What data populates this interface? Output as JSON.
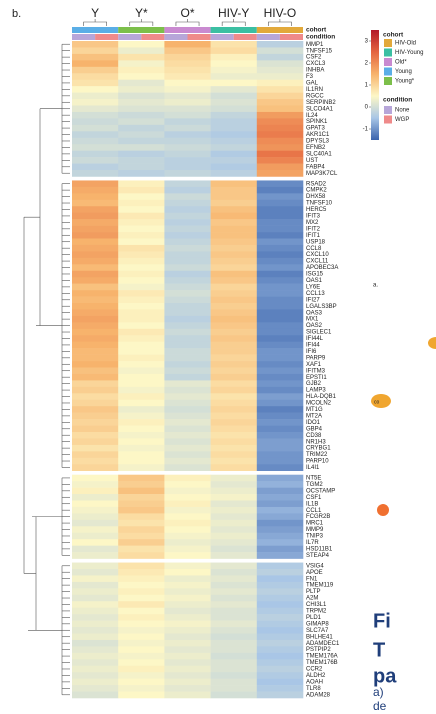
{
  "panel_label": "b.",
  "side_panel": {
    "label": "a.",
    "node_text": "co",
    "caption": [
      "Fi",
      "T",
      "pa",
      "a)",
      "de"
    ]
  },
  "chart_data": {
    "type": "heatmap",
    "columns": [
      "Y",
      "Y*",
      "O*",
      "HIV-Y",
      "HIV-O"
    ],
    "cohort_legend": {
      "title": "cohort",
      "names": [
        "HIV-Old",
        "HIV-Young",
        "Old*",
        "Young",
        "Young*"
      ],
      "colors": [
        "#e2a93b",
        "#3bbfa2",
        "#c98ad0",
        "#5aaee6",
        "#7cbf4a"
      ]
    },
    "column_cohorts": [
      3,
      4,
      2,
      1,
      0
    ],
    "condition_legend": {
      "title": "condition",
      "names": [
        "None",
        "WGP"
      ],
      "colors": [
        "#b7a6d9",
        "#ef8a8a"
      ]
    },
    "colorscale": [
      "#3b63ad",
      "#a9c6e6",
      "#fdf7c6",
      "#f7b36c",
      "#e4653f",
      "#b3192a"
    ],
    "zlim": [
      -1.5,
      3.5
    ],
    "zticks": [
      3,
      2,
      1,
      0,
      -1
    ],
    "row_groups": [
      {
        "rows": [
          "MMP1",
          "TNFSF15",
          "CSF2",
          "CXCL3",
          "INHBA",
          "F3",
          "GAL",
          "IL1RN",
          "RGCC",
          "SERPINB2",
          "SLCO4A1",
          "IL24",
          "SPINK1",
          "GPAT3",
          "AKR1C1",
          "DPYSL3",
          "EFNB2",
          "SLC40A1",
          "UST",
          "FABP4",
          "MAP3K7CL"
        ],
        "values": [
          [
            1.2,
            0.5,
            1.5,
            0.8,
            -0.3
          ],
          [
            1.0,
            0.3,
            1.2,
            0.9,
            0.0
          ],
          [
            1.3,
            0.8,
            1.0,
            0.6,
            -0.2
          ],
          [
            1.5,
            0.4,
            0.9,
            0.5,
            0.1
          ],
          [
            1.1,
            0.6,
            0.8,
            0.4,
            0.2
          ],
          [
            0.9,
            0.5,
            0.7,
            0.3,
            0.3
          ],
          [
            0.8,
            0.2,
            0.5,
            0.5,
            0.6
          ],
          [
            0.5,
            0.3,
            0.4,
            0.2,
            0.8
          ],
          [
            0.3,
            0.1,
            0.2,
            0.0,
            1.0
          ],
          [
            0.4,
            0.2,
            0.3,
            0.1,
            1.2
          ],
          [
            0.2,
            0.1,
            0.1,
            0.0,
            1.3
          ],
          [
            0.0,
            -0.1,
            0.0,
            -0.2,
            1.8
          ],
          [
            -0.1,
            0.0,
            -0.2,
            -0.3,
            2.0
          ],
          [
            0.0,
            -0.2,
            -0.1,
            -0.3,
            2.1
          ],
          [
            -0.2,
            -0.1,
            -0.3,
            -0.4,
            2.2
          ],
          [
            -0.1,
            -0.2,
            -0.2,
            -0.3,
            2.0
          ],
          [
            0.0,
            0.0,
            -0.1,
            -0.2,
            1.9
          ],
          [
            -0.2,
            -0.3,
            -0.2,
            -0.4,
            2.3
          ],
          [
            -0.1,
            -0.2,
            -0.3,
            -0.3,
            2.1
          ],
          [
            -0.3,
            -0.2,
            -0.3,
            -0.4,
            1.8
          ],
          [
            -0.2,
            -0.3,
            -0.2,
            -0.3,
            1.7
          ]
        ]
      },
      {
        "rows": [
          "RSAD2",
          "CMPK2",
          "DHX58",
          "TNFSF10",
          "HERC5",
          "IFIT3",
          "MX2",
          "IFIT2",
          "IFIT1",
          "USP18",
          "CCL8",
          "CXCL10",
          "CXCL11",
          "APOBEC3A",
          "ISG15",
          "OAS1",
          "LY6E",
          "CCL13",
          "IFI27",
          "LGALS3BP",
          "OAS3",
          "MX1",
          "OAS2",
          "SIGLEC1",
          "IFI44L",
          "IFI44",
          "IFI6",
          "PARP9",
          "XAF1",
          "IFITM3",
          "EPSTI1",
          "GJB2",
          "LAMP3",
          "HLA-DQB1",
          "MCOLN2",
          "MT1G",
          "MT2A",
          "IDO1",
          "GBP4",
          "CD38",
          "NR1H3",
          "CRYBG1",
          "TRIM22",
          "PARP10",
          "IL4I1"
        ],
        "values": [
          [
            1.7,
            0.6,
            -0.2,
            1.3,
            -1.1
          ],
          [
            1.6,
            0.7,
            -0.3,
            1.2,
            -1.2
          ],
          [
            1.5,
            0.5,
            -0.1,
            1.2,
            -1.0
          ],
          [
            1.4,
            0.6,
            -0.2,
            1.1,
            -1.1
          ],
          [
            1.7,
            0.5,
            -0.3,
            1.3,
            -1.2
          ],
          [
            1.8,
            0.7,
            -0.2,
            1.4,
            -1.2
          ],
          [
            1.6,
            0.6,
            -0.3,
            1.2,
            -1.1
          ],
          [
            1.7,
            0.5,
            -0.2,
            1.3,
            -1.1
          ],
          [
            1.8,
            0.6,
            -0.3,
            1.3,
            -1.2
          ],
          [
            1.5,
            0.5,
            -0.2,
            1.2,
            -1.0
          ],
          [
            1.6,
            0.8,
            -0.1,
            1.1,
            -1.1
          ],
          [
            1.7,
            0.7,
            -0.2,
            1.2,
            -1.2
          ],
          [
            1.6,
            0.6,
            -0.2,
            1.1,
            -1.1
          ],
          [
            1.4,
            0.5,
            -0.1,
            1.0,
            -1.0
          ],
          [
            1.7,
            0.6,
            -0.3,
            1.3,
            -1.2
          ],
          [
            1.6,
            0.5,
            -0.2,
            1.2,
            -1.1
          ],
          [
            1.3,
            0.4,
            -0.1,
            1.0,
            -1.0
          ],
          [
            1.5,
            0.7,
            0.0,
            1.1,
            -1.0
          ],
          [
            1.4,
            0.6,
            -0.1,
            1.2,
            -1.1
          ],
          [
            1.5,
            0.5,
            -0.2,
            1.1,
            -1.1
          ],
          [
            1.6,
            0.6,
            -0.2,
            1.2,
            -1.2
          ],
          [
            1.7,
            0.6,
            -0.3,
            1.3,
            -1.2
          ],
          [
            1.6,
            0.5,
            -0.2,
            1.2,
            -1.1
          ],
          [
            1.5,
            0.7,
            -0.1,
            1.1,
            -1.1
          ],
          [
            1.6,
            0.6,
            -0.2,
            1.2,
            -1.2
          ],
          [
            1.5,
            0.5,
            -0.2,
            1.1,
            -1.1
          ],
          [
            1.4,
            0.5,
            -0.1,
            1.1,
            -1.0
          ],
          [
            1.4,
            0.6,
            -0.1,
            1.0,
            -1.0
          ],
          [
            1.5,
            0.5,
            -0.2,
            1.1,
            -1.1
          ],
          [
            1.3,
            0.4,
            -0.1,
            1.0,
            -1.0
          ],
          [
            1.4,
            0.5,
            -0.2,
            1.1,
            -1.1
          ],
          [
            1.0,
            0.5,
            0.2,
            0.9,
            -1.0
          ],
          [
            1.1,
            0.4,
            0.1,
            1.0,
            -1.1
          ],
          [
            0.9,
            0.6,
            0.2,
            0.8,
            -0.9
          ],
          [
            1.0,
            0.5,
            0.1,
            0.9,
            -1.0
          ],
          [
            1.2,
            0.3,
            0.0,
            1.0,
            -1.2
          ],
          [
            1.1,
            0.4,
            0.1,
            0.9,
            -1.1
          ],
          [
            1.0,
            0.6,
            0.2,
            1.0,
            -1.0
          ],
          [
            1.1,
            0.5,
            0.1,
            0.9,
            -1.1
          ],
          [
            0.9,
            0.4,
            0.2,
            0.8,
            -1.0
          ],
          [
            1.0,
            0.5,
            0.1,
            0.9,
            -0.9
          ],
          [
            0.8,
            0.4,
            0.2,
            0.8,
            -0.9
          ],
          [
            1.0,
            0.5,
            0.1,
            0.9,
            -1.0
          ],
          [
            0.9,
            0.5,
            0.2,
            0.8,
            -1.0
          ],
          [
            1.0,
            0.4,
            0.1,
            0.9,
            -1.1
          ]
        ]
      },
      {
        "rows": [
          "NT5E",
          "TGM2",
          "OCSTAMP",
          "CSF1",
          "IL1B",
          "CCL1",
          "FCGR2B",
          "MRC1",
          "MMP9",
          "TNIP3",
          "IL7R",
          "HSD11B1",
          "STEAP4"
        ],
        "values": [
          [
            0.5,
            1.2,
            0.6,
            0.3,
            -0.8
          ],
          [
            0.4,
            1.1,
            0.5,
            0.2,
            -0.7
          ],
          [
            0.6,
            1.3,
            0.4,
            0.3,
            -0.9
          ],
          [
            0.3,
            1.0,
            0.5,
            0.4,
            -0.8
          ],
          [
            0.5,
            1.1,
            0.6,
            0.2,
            -0.9
          ],
          [
            0.4,
            1.2,
            0.4,
            0.3,
            -0.7
          ],
          [
            0.3,
            0.9,
            0.5,
            0.2,
            -0.8
          ],
          [
            0.2,
            0.8,
            0.6,
            0.3,
            -1.0
          ],
          [
            0.4,
            1.0,
            0.5,
            0.2,
            -0.9
          ],
          [
            0.3,
            0.9,
            0.4,
            0.3,
            -0.8
          ],
          [
            0.5,
            1.1,
            0.3,
            0.2,
            -0.7
          ],
          [
            0.2,
            0.8,
            0.4,
            0.1,
            -0.9
          ],
          [
            0.3,
            0.9,
            0.5,
            0.2,
            -0.8
          ]
        ]
      },
      {
        "rows": [
          "VSIG4",
          "APOE",
          "FN1",
          "TMEM119",
          "PLTP",
          "A2M",
          "CHI3L1",
          "TRPM2",
          "PLD1",
          "GIMAP8",
          "SLC7A7",
          "BHLHE41",
          "ADAMDEC1",
          "PSTPIP2",
          "TMEM176A",
          "TMEM176B",
          "CCR2",
          "ALDH2",
          "AOAH",
          "TLR8",
          "ADAM28"
        ],
        "values": [
          [
            0.3,
            0.8,
            0.4,
            0.2,
            -0.4
          ],
          [
            0.2,
            0.7,
            0.5,
            0.1,
            -0.3
          ],
          [
            0.4,
            0.6,
            0.3,
            0.2,
            -0.5
          ],
          [
            0.2,
            0.5,
            0.4,
            0.1,
            -0.4
          ],
          [
            0.3,
            0.6,
            0.3,
            0.2,
            -0.3
          ],
          [
            0.2,
            0.5,
            0.4,
            0.1,
            -0.4
          ],
          [
            0.4,
            0.7,
            0.3,
            0.2,
            -0.5
          ],
          [
            0.3,
            0.5,
            0.2,
            0.1,
            -0.4
          ],
          [
            0.2,
            0.6,
            0.3,
            0.1,
            -0.3
          ],
          [
            0.3,
            0.5,
            0.4,
            0.2,
            -0.4
          ],
          [
            0.2,
            0.4,
            0.3,
            0.1,
            -0.5
          ],
          [
            0.3,
            0.5,
            0.2,
            0.0,
            -0.4
          ],
          [
            0.1,
            0.4,
            0.3,
            0.1,
            -0.3
          ],
          [
            0.2,
            0.5,
            0.2,
            0.1,
            -0.4
          ],
          [
            0.3,
            0.4,
            0.3,
            0.0,
            -0.5
          ],
          [
            0.2,
            0.5,
            0.2,
            0.1,
            -0.4
          ],
          [
            0.3,
            0.6,
            0.3,
            0.1,
            -0.3
          ],
          [
            0.2,
            0.4,
            0.2,
            0.0,
            -0.4
          ],
          [
            0.3,
            0.5,
            0.3,
            0.1,
            -0.5
          ],
          [
            0.2,
            0.4,
            0.2,
            0.1,
            -0.4
          ],
          [
            0.1,
            0.5,
            0.3,
            0.0,
            -0.3
          ]
        ]
      }
    ]
  }
}
